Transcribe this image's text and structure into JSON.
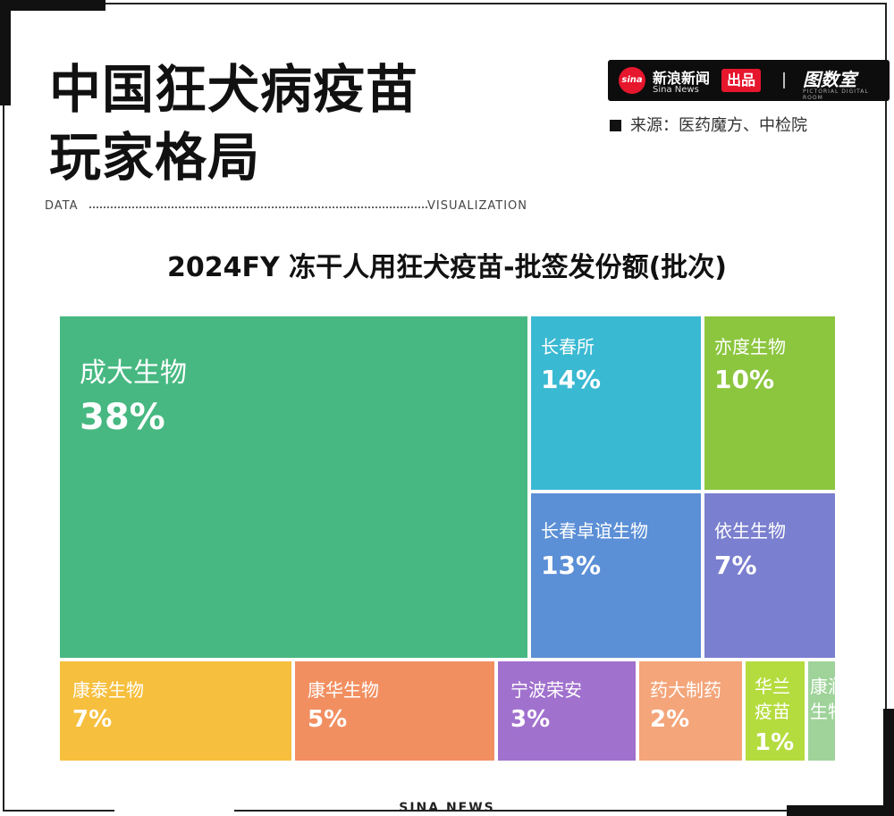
{
  "header": {
    "title_line1": "中国狂犬病疫苗",
    "title_line2": "玩家格局",
    "brand_logo_text": "sina",
    "brand_cn": "新浪新闻",
    "brand_en": "Sina News",
    "brand_badge": "出品",
    "brand_partner": "图数室",
    "brand_partner_sub": "PICTORIAL DIGITAL ROOM",
    "source": "来源：医药魔方、中检院",
    "data_label": "DATA",
    "visualization_label": "VISUALIZATION"
  },
  "footer": {
    "brand": "SINA NEWS"
  },
  "chart_data": {
    "type": "treemap",
    "title": "2024FY 冻干人用狂犬疫苗-批签发份额(批次)",
    "unit": "%",
    "items": [
      {
        "name": "成大生物",
        "value": 38,
        "label": "38%",
        "color": "#47b881"
      },
      {
        "name": "长春所",
        "value": 14,
        "label": "14%",
        "color": "#3ab9d2"
      },
      {
        "name": "亦度生物",
        "value": 10,
        "label": "10%",
        "color": "#8cc63f"
      },
      {
        "name": "长春卓谊生物",
        "value": 13,
        "label": "13%",
        "color": "#5b8fd6"
      },
      {
        "name": "依生生物",
        "value": 7,
        "label": "7%",
        "color": "#7a7fcf"
      },
      {
        "name": "康泰生物",
        "value": 7,
        "label": "7%",
        "color": "#f6bf3d"
      },
      {
        "name": "康华生物",
        "value": 5,
        "label": "5%",
        "color": "#f28f61"
      },
      {
        "name": "宁波荣安",
        "value": 3,
        "label": "3%",
        "color": "#a171ce"
      },
      {
        "name": "药大制药",
        "value": 2,
        "label": "2%",
        "color": "#f4a57a"
      },
      {
        "name": "华兰疫苗",
        "value": 1,
        "label": "1%",
        "color": "#b5dc3f"
      },
      {
        "name": "康润生物",
        "value": null,
        "label": "",
        "color": "#9fd39a"
      }
    ]
  }
}
